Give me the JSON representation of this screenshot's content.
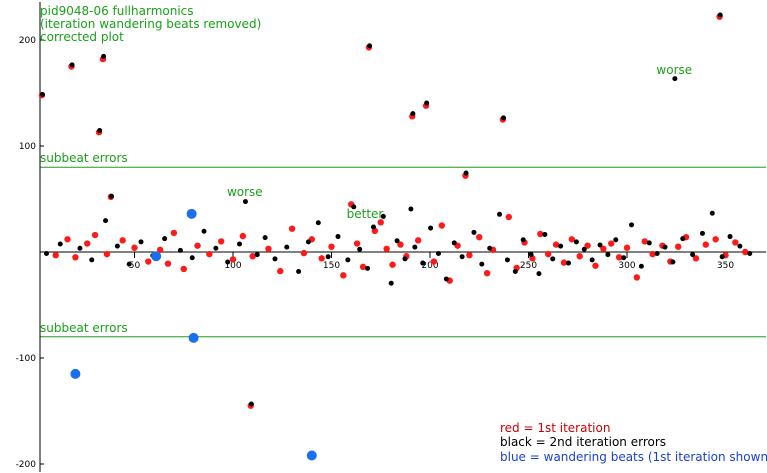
{
  "chart_data": {
    "type": "scatter",
    "title_lines": [
      "pid9048-06 fullharmonics",
      "(iteration wandering beats removed)",
      "corrected plot"
    ],
    "xlim": [
      0,
      366
    ],
    "ylim": [
      -200,
      225
    ],
    "x_ticks": [
      {
        "value": 50,
        "label": "50"
      },
      {
        "value": 100,
        "label": "100"
      },
      {
        "value": 150,
        "label": "150"
      },
      {
        "value": 200,
        "label": "200"
      },
      {
        "value": 250,
        "label": "250"
      },
      {
        "value": 300,
        "label": "300"
      },
      {
        "value": 350,
        "label": "350"
      }
    ],
    "y_ticks": [
      {
        "value": 200,
        "label": "200"
      },
      {
        "value": 100,
        "label": "100"
      },
      {
        "value": -100,
        "label": "-100"
      },
      {
        "value": -200,
        "label": "-200"
      }
    ],
    "reference_lines": [
      {
        "y": 80,
        "label": "subbeat errors",
        "color": "#1aa01a"
      },
      {
        "y": -80,
        "label": "subbeat errors",
        "color": "#1aa01a"
      }
    ],
    "annotations": [
      {
        "text": "worse",
        "x": 324,
        "y": 168,
        "color": "#1aa01a"
      },
      {
        "text": "worse",
        "x": 106,
        "y": 53,
        "color": "#1aa01a"
      },
      {
        "text": "better",
        "x": 167,
        "y": 32,
        "color": "#1aa01a"
      }
    ],
    "legend": {
      "position": "bottom-right",
      "entries": [
        {
          "text": "red = 1st iteration",
          "color": "#cc0000"
        },
        {
          "text": "black = 2nd iteration errors",
          "color": "#000000"
        },
        {
          "text": "blue = wandering beats (1st iteration shown)",
          "color": "#1a3fd6"
        }
      ]
    },
    "series": [
      {
        "id": "first-iteration",
        "color": "#ff1a1a",
        "points": [
          [
            3,
            148
          ],
          [
            18,
            175
          ],
          [
            32,
            113
          ],
          [
            34,
            182
          ],
          [
            38,
            52
          ],
          [
            109,
            -145
          ],
          [
            169,
            193
          ],
          [
            191,
            128
          ],
          [
            198,
            138
          ],
          [
            218,
            72
          ],
          [
            237,
            125
          ],
          [
            347,
            222
          ],
          [
            10,
            -3
          ],
          [
            16,
            12
          ],
          [
            20,
            -5
          ],
          [
            26,
            8
          ],
          [
            30,
            16
          ],
          [
            36,
            -2
          ],
          [
            44,
            11
          ],
          [
            50,
            4
          ],
          [
            57,
            -9
          ],
          [
            63,
            2
          ],
          [
            67,
            -11
          ],
          [
            70,
            18
          ],
          [
            75,
            -16
          ],
          [
            82,
            6
          ],
          [
            88,
            -2
          ],
          [
            94,
            10
          ],
          [
            100,
            -7
          ],
          [
            105,
            15
          ],
          [
            110,
            -4
          ],
          [
            118,
            3
          ],
          [
            124,
            -18
          ],
          [
            130,
            22
          ],
          [
            136,
            -1
          ],
          [
            140,
            12
          ],
          [
            145,
            -6
          ],
          [
            150,
            5
          ],
          [
            156,
            -22
          ],
          [
            160,
            45
          ],
          [
            163,
            8
          ],
          [
            166,
            -14
          ],
          [
            172,
            20
          ],
          [
            175,
            28
          ],
          [
            178,
            3
          ],
          [
            181,
            -12
          ],
          [
            185,
            7
          ],
          [
            188,
            -4
          ],
          [
            194,
            11
          ],
          [
            202,
            -9
          ],
          [
            206,
            25
          ],
          [
            210,
            -27
          ],
          [
            214,
            6
          ],
          [
            220,
            -3
          ],
          [
            225,
            14
          ],
          [
            229,
            -20
          ],
          [
            232,
            2
          ],
          [
            240,
            33
          ],
          [
            244,
            -15
          ],
          [
            248,
            9
          ],
          [
            252,
            -6
          ],
          [
            256,
            17
          ],
          [
            260,
            -2
          ],
          [
            264,
            7
          ],
          [
            268,
            -10
          ],
          [
            272,
            12
          ],
          [
            276,
            -4
          ],
          [
            280,
            6
          ],
          [
            284,
            -13
          ],
          [
            288,
            3
          ],
          [
            292,
            8
          ],
          [
            296,
            -5
          ],
          [
            300,
            4
          ],
          [
            305,
            -24
          ],
          [
            309,
            10
          ],
          [
            313,
            -2
          ],
          [
            318,
            6
          ],
          [
            322,
            -9
          ],
          [
            326,
            5
          ],
          [
            330,
            14
          ],
          [
            335,
            -6
          ],
          [
            340,
            7
          ],
          [
            345,
            12
          ],
          [
            350,
            -3
          ],
          [
            355,
            9
          ],
          [
            360,
            0
          ]
        ]
      },
      {
        "id": "second-iteration",
        "color": "#000000",
        "points": [
          [
            3,
            148
          ],
          [
            18,
            176
          ],
          [
            32,
            114
          ],
          [
            34,
            184
          ],
          [
            38,
            52
          ],
          [
            109,
            -144
          ],
          [
            169,
            194
          ],
          [
            191,
            130
          ],
          [
            198,
            140
          ],
          [
            218,
            74
          ],
          [
            237,
            126
          ],
          [
            347,
            223
          ],
          [
            324,
            163
          ],
          [
            106,
            47
          ],
          [
            190,
            40
          ],
          [
            5,
            -2
          ],
          [
            12,
            7
          ],
          [
            22,
            3
          ],
          [
            28,
            -8
          ],
          [
            35,
            29
          ],
          [
            41,
            5
          ],
          [
            47,
            -12
          ],
          [
            53,
            9
          ],
          [
            59,
            -4
          ],
          [
            65,
            12
          ],
          [
            73,
            1
          ],
          [
            79,
            -6
          ],
          [
            85,
            19
          ],
          [
            91,
            3
          ],
          [
            97,
            -10
          ],
          [
            103,
            7
          ],
          [
            112,
            -3
          ],
          [
            116,
            13
          ],
          [
            121,
            -7
          ],
          [
            127,
            4
          ],
          [
            133,
            -19
          ],
          [
            138,
            9
          ],
          [
            143,
            27
          ],
          [
            148,
            -5
          ],
          [
            153,
            14
          ],
          [
            158,
            -8
          ],
          [
            161,
            42
          ],
          [
            164,
            2
          ],
          [
            168,
            -16
          ],
          [
            171,
            23
          ],
          [
            176,
            33
          ],
          [
            180,
            -30
          ],
          [
            183,
            10
          ],
          [
            187,
            -7
          ],
          [
            192,
            4
          ],
          [
            196,
            -11
          ],
          [
            200,
            22
          ],
          [
            204,
            -2
          ],
          [
            208,
            -26
          ],
          [
            212,
            8
          ],
          [
            216,
            -5
          ],
          [
            222,
            18
          ],
          [
            226,
            -12
          ],
          [
            230,
            3
          ],
          [
            235,
            35
          ],
          [
            239,
            -8
          ],
          [
            243,
            -19
          ],
          [
            247,
            11
          ],
          [
            251,
            -3
          ],
          [
            255,
            -21
          ],
          [
            258,
            16
          ],
          [
            262,
            -7
          ],
          [
            266,
            5
          ],
          [
            270,
            -11
          ],
          [
            274,
            9
          ],
          [
            278,
            2
          ],
          [
            282,
            -8
          ],
          [
            286,
            6
          ],
          [
            290,
            -3
          ],
          [
            294,
            11
          ],
          [
            298,
            -6
          ],
          [
            302,
            25
          ],
          [
            307,
            -14
          ],
          [
            311,
            8
          ],
          [
            315,
            -2
          ],
          [
            319,
            4
          ],
          [
            323,
            -10
          ],
          [
            328,
            12
          ],
          [
            333,
            -3
          ],
          [
            338,
            17
          ],
          [
            343,
            36
          ],
          [
            348,
            -5
          ],
          [
            352,
            14
          ],
          [
            357,
            5
          ],
          [
            362,
            -2
          ]
        ]
      },
      {
        "id": "wandering-beats",
        "color": "#1a6ef0",
        "points": [
          [
            20,
            -115
          ],
          [
            61,
            -4
          ],
          [
            79,
            36
          ],
          [
            80,
            -81
          ],
          [
            140,
            -192
          ]
        ]
      }
    ]
  }
}
